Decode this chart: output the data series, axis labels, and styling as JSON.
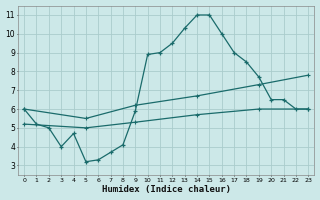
{
  "xlabel": "Humidex (Indice chaleur)",
  "bg_color": "#cce8e8",
  "grid_color": "#aacccc",
  "line_color": "#1a6b6b",
  "line1_x": [
    0,
    1,
    2,
    3,
    4,
    5,
    6,
    7,
    8,
    9,
    10,
    11,
    12,
    13,
    14,
    15,
    16,
    17,
    18,
    19,
    20,
    21,
    22,
    23
  ],
  "line1_y": [
    6.0,
    5.2,
    5.0,
    4.0,
    4.7,
    3.2,
    3.3,
    3.7,
    4.1,
    5.9,
    8.9,
    9.0,
    9.5,
    10.3,
    11.0,
    11.0,
    10.0,
    9.0,
    8.5,
    7.7,
    6.5,
    6.5,
    6.0,
    6.0
  ],
  "line2_x": [
    0,
    5,
    9,
    14,
    19,
    23
  ],
  "line2_y": [
    6.0,
    5.5,
    6.2,
    6.7,
    7.3,
    7.8
  ],
  "line3_x": [
    0,
    5,
    9,
    14,
    19,
    23
  ],
  "line3_y": [
    5.2,
    5.0,
    5.3,
    5.7,
    6.0,
    6.0
  ],
  "ylim": [
    2.5,
    11.5
  ],
  "xlim": [
    -0.5,
    23.5
  ],
  "yticks": [
    3,
    4,
    5,
    6,
    7,
    8,
    9,
    10,
    11
  ],
  "xticks": [
    0,
    1,
    2,
    3,
    4,
    5,
    6,
    7,
    8,
    9,
    10,
    11,
    12,
    13,
    14,
    15,
    16,
    17,
    18,
    19,
    20,
    21,
    22,
    23
  ]
}
